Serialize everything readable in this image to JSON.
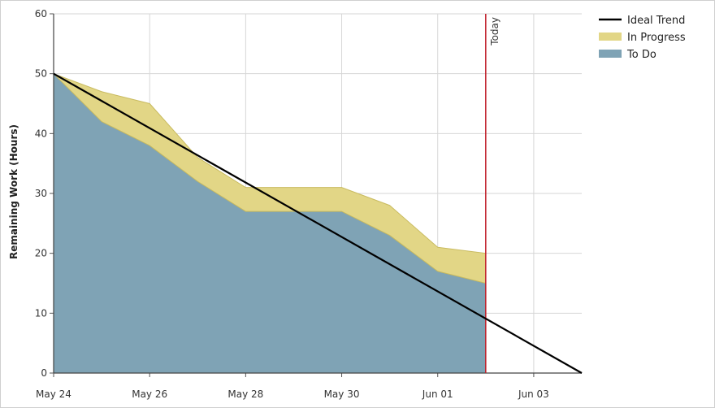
{
  "chart_data": {
    "type": "area",
    "title": "",
    "ylabel": "Remaining Work (Hours)",
    "xlabel": "",
    "ylim": [
      0,
      60
    ],
    "yticks": [
      0,
      10,
      20,
      30,
      40,
      50,
      60
    ],
    "x_tick_labels": [
      "May 24",
      "May 26",
      "May 28",
      "May 30",
      "Jun 01",
      "Jun 03"
    ],
    "x_range": [
      "May 24",
      "Jun 04"
    ],
    "x": [
      "May 24",
      "May 25",
      "May 26",
      "May 27",
      "May 28",
      "May 29",
      "May 30",
      "May 31",
      "Jun 01",
      "Jun 02"
    ],
    "series": [
      {
        "name": "To Do",
        "type": "area",
        "color": "#7fa3b5",
        "values": [
          50,
          42,
          38,
          32,
          27,
          27,
          27,
          23,
          17,
          15
        ]
      },
      {
        "name": "In Progress",
        "type": "area-stacked",
        "color": "#e2d686",
        "values": [
          0,
          5,
          7,
          4,
          4,
          4,
          4,
          5,
          4,
          5
        ]
      },
      {
        "name": "Ideal Trend",
        "type": "line",
        "color": "#000000",
        "points": [
          [
            "May 24",
            50
          ],
          [
            "Jun 04",
            0
          ]
        ]
      }
    ],
    "today_marker": {
      "label": "Today",
      "date": "Jun 02",
      "color": "#c0202a"
    },
    "grid": true,
    "legend_position": "top-right"
  }
}
